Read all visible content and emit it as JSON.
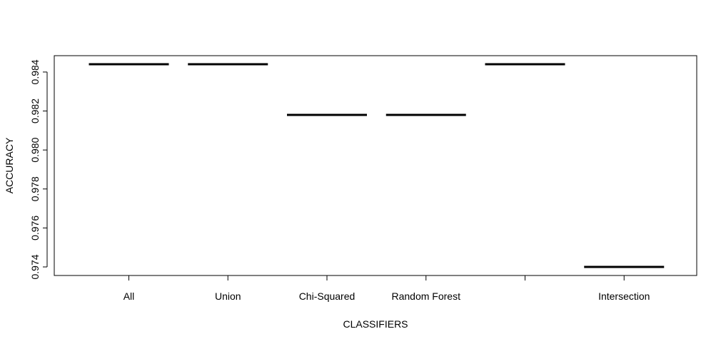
{
  "chart_data": {
    "type": "bar",
    "title": "",
    "xlabel": "CLASSIFIERS",
    "ylabel": "ACCURACY",
    "categories": [
      "All",
      "Union",
      "Chi-Squared",
      "Random Forest",
      "",
      "Intersection"
    ],
    "values": [
      0.9844,
      0.9844,
      0.9818,
      0.9818,
      0.9844,
      0.974
    ],
    "yticks": [
      "0.974",
      "0.976",
      "0.978",
      "0.980",
      "0.982",
      "0.984"
    ],
    "ylim": [
      0.9735,
      0.9848
    ],
    "grid": false,
    "legend": "none"
  }
}
